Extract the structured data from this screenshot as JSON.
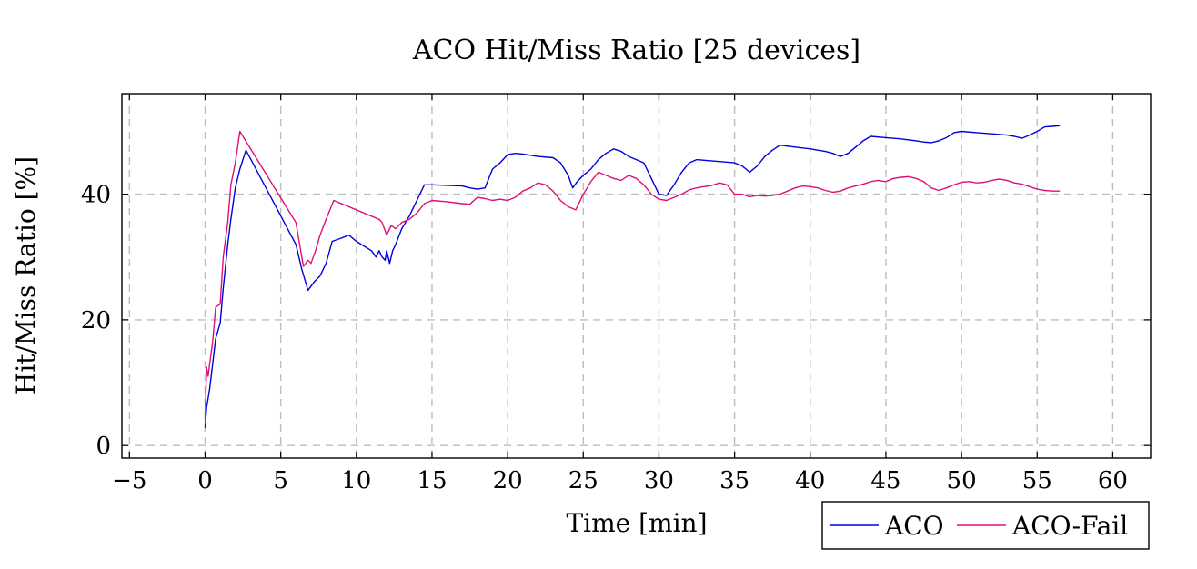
{
  "chart_data": {
    "type": "line",
    "title": "ACO Hit/Miss Ratio [25 devices]",
    "xlabel": "Time [min]",
    "ylabel": "Hit/Miss Ratio [%]",
    "xlim": [
      -5.5,
      62.5
    ],
    "ylim": [
      -2,
      56
    ],
    "xticks": [
      -5,
      0,
      5,
      10,
      15,
      20,
      25,
      30,
      35,
      40,
      45,
      50,
      55,
      60
    ],
    "xtick_labels": [
      "−5",
      "0",
      "5",
      "10",
      "15",
      "20",
      "25",
      "30",
      "35",
      "40",
      "45",
      "50",
      "55",
      "60"
    ],
    "yticks": [
      0,
      20,
      40
    ],
    "ytick_labels": [
      "0",
      "20",
      "40"
    ],
    "grid": true,
    "legend_position": "bottom-right outside",
    "series": [
      {
        "name": "ACO",
        "color": "#0000dd",
        "x": [
          0,
          0.1,
          0.2,
          0.3,
          0.5,
          0.7,
          1.0,
          1.2,
          1.5,
          1.7,
          2.0,
          2.3,
          2.7,
          6.0,
          6.4,
          6.8,
          7.2,
          7.6,
          8.0,
          8.4,
          9.0,
          9.5,
          10.0,
          11.0,
          11.3,
          11.5,
          11.7,
          11.9,
          12.0,
          12.2,
          12.4,
          12.6,
          13.0,
          13.5,
          14.0,
          14.5,
          15.0,
          16.0,
          17.0,
          17.5,
          18.0,
          18.5,
          19.0,
          19.5,
          20.0,
          20.5,
          21.0,
          22.0,
          23.0,
          23.5,
          24.0,
          24.3,
          24.6,
          25.0,
          25.5,
          26.0,
          26.5,
          27.0,
          27.5,
          28.0,
          28.5,
          29.0,
          29.5,
          30.0,
          30.5,
          31.0,
          31.5,
          32.0,
          32.5,
          33.0,
          34.0,
          35.0,
          35.5,
          36.0,
          36.5,
          37.0,
          37.5,
          38.0,
          39.0,
          40.0,
          41.0,
          41.5,
          42.0,
          42.5,
          43.0,
          43.5,
          44.0,
          45.0,
          46.0,
          47.0,
          47.5,
          48.0,
          48.5,
          49.0,
          49.5,
          50.0,
          51.0,
          52.0,
          53.0,
          53.5,
          54.0,
          54.5,
          55.0,
          55.5,
          56.0,
          56.5
        ],
        "y": [
          2.8,
          6.0,
          7.5,
          9.0,
          13.0,
          17.0,
          19.5,
          25.0,
          32.0,
          36.0,
          41.0,
          44.0,
          47.0,
          32.0,
          28.0,
          24.7,
          26.0,
          27.0,
          29.0,
          32.5,
          33.0,
          33.5,
          32.5,
          31.0,
          30.0,
          31.0,
          30.0,
          29.5,
          31.0,
          29.0,
          31.0,
          32.0,
          34.5,
          36.5,
          39.0,
          41.5,
          41.5,
          41.4,
          41.3,
          41.0,
          40.8,
          41.0,
          44.0,
          45.0,
          46.3,
          46.5,
          46.4,
          46.0,
          45.8,
          45.0,
          43.0,
          41.0,
          42.0,
          43.0,
          44.0,
          45.5,
          46.5,
          47.2,
          46.8,
          46.0,
          45.5,
          45.0,
          42.5,
          40.0,
          39.8,
          41.5,
          43.5,
          45.0,
          45.5,
          45.4,
          45.2,
          45.0,
          44.5,
          43.5,
          44.5,
          46.0,
          47.0,
          47.8,
          47.5,
          47.2,
          46.8,
          46.5,
          46.0,
          46.5,
          47.5,
          48.5,
          49.2,
          49.0,
          48.8,
          48.5,
          48.3,
          48.2,
          48.5,
          49.0,
          49.8,
          50.0,
          49.8,
          49.6,
          49.4,
          49.2,
          48.9,
          49.4,
          50.0,
          50.7,
          50.8,
          50.9
        ]
      },
      {
        "name": "ACO-Fail",
        "color": "#dd1177",
        "x": [
          0,
          0.1,
          0.2,
          0.3,
          0.5,
          0.7,
          1.0,
          1.2,
          1.5,
          1.7,
          2.0,
          2.3,
          6.0,
          6.5,
          6.8,
          7.0,
          7.3,
          7.6,
          8.0,
          8.5,
          11.5,
          11.7,
          12.0,
          12.3,
          12.6,
          13.0,
          13.5,
          14.0,
          14.5,
          15.0,
          16.0,
          17.0,
          17.5,
          18.0,
          18.5,
          19.0,
          19.5,
          20.0,
          20.5,
          21.0,
          21.5,
          22.0,
          22.5,
          23.0,
          23.5,
          24.0,
          24.5,
          25.0,
          25.5,
          26.0,
          26.5,
          27.0,
          27.5,
          28.0,
          28.5,
          29.0,
          29.5,
          30.0,
          30.5,
          31.0,
          31.5,
          32.0,
          32.5,
          33.0,
          33.5,
          34.0,
          34.5,
          35.0,
          35.5,
          36.0,
          36.5,
          37.0,
          37.5,
          38.0,
          38.5,
          39.0,
          39.5,
          40.0,
          40.5,
          41.0,
          41.5,
          42.0,
          42.5,
          43.0,
          43.5,
          44.0,
          44.5,
          45.0,
          45.5,
          46.0,
          46.5,
          47.0,
          47.5,
          48.0,
          48.5,
          49.0,
          49.5,
          50.0,
          50.5,
          51.0,
          51.5,
          52.0,
          52.5,
          53.0,
          53.5,
          54.0,
          54.5,
          55.0,
          55.5,
          56.0,
          56.5
        ],
        "y": [
          4.0,
          12.5,
          11.0,
          13.0,
          16.5,
          22.0,
          22.5,
          30.0,
          35.5,
          41.5,
          45.0,
          50.0,
          35.5,
          28.5,
          29.5,
          29.0,
          31.0,
          33.5,
          36.0,
          39.0,
          36.0,
          35.5,
          33.5,
          35.0,
          34.5,
          35.5,
          36.0,
          37.0,
          38.5,
          39.0,
          38.8,
          38.5,
          38.4,
          39.5,
          39.3,
          39.0,
          39.2,
          39.0,
          39.5,
          40.5,
          41.0,
          41.8,
          41.5,
          40.5,
          39.0,
          38.0,
          37.5,
          40.0,
          42.0,
          43.5,
          43.0,
          42.5,
          42.2,
          43.0,
          42.5,
          41.5,
          40.0,
          39.2,
          39.0,
          39.5,
          40.0,
          40.7,
          41.0,
          41.2,
          41.4,
          41.8,
          41.5,
          40.0,
          40.0,
          39.6,
          39.8,
          39.7,
          39.8,
          40.0,
          40.5,
          41.0,
          41.3,
          41.2,
          41.0,
          40.6,
          40.3,
          40.5,
          41.0,
          41.3,
          41.6,
          42.0,
          42.2,
          42.0,
          42.5,
          42.7,
          42.8,
          42.5,
          42.0,
          41.0,
          40.6,
          41.0,
          41.5,
          41.9,
          42.0,
          41.8,
          41.9,
          42.2,
          42.4,
          42.2,
          41.8,
          41.6,
          41.2,
          40.8,
          40.6,
          40.5,
          40.5
        ]
      }
    ]
  }
}
